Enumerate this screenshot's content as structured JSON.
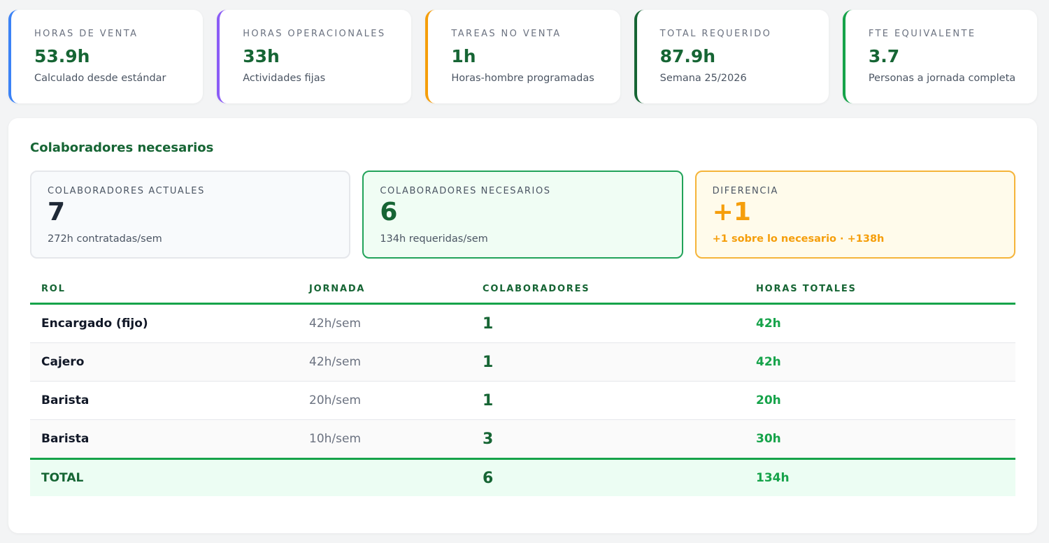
{
  "kpis": [
    {
      "label": "HORAS DE VENTA",
      "value": "53.9h",
      "sub": "Calculado desde estándar",
      "accent": "#3b82f6"
    },
    {
      "label": "HORAS OPERACIONALES",
      "value": "33h",
      "sub": "Actividades fijas",
      "accent": "#8b5cf6"
    },
    {
      "label": "TAREAS NO VENTA",
      "value": "1h",
      "sub": "Horas-hombre programadas",
      "accent": "#f59e0b"
    },
    {
      "label": "TOTAL REQUERIDO",
      "value": "87.9h",
      "sub": "Semana 25/2026",
      "accent": "#166534"
    },
    {
      "label": "FTE EQUIVALENTE",
      "value": "3.7",
      "sub": "Personas a jornada completa",
      "accent": "#16a34a"
    }
  ],
  "panel": {
    "title": "Colaboradores necesarios",
    "summary": {
      "actual": {
        "label": "COLABORADORES ACTUALES",
        "value": "7",
        "sub": "272h contratadas/sem"
      },
      "needed": {
        "label": "COLABORADORES NECESARIOS",
        "value": "6",
        "sub": "134h requeridas/sem"
      },
      "diff": {
        "label": "DIFERENCIA",
        "value": "+1",
        "sub": "+1 sobre lo necesario · +138h"
      }
    },
    "table": {
      "headers": {
        "rol": "ROL",
        "jornada": "JORNADA",
        "colaboradores": "COLABORADORES",
        "horas": "HORAS TOTALES"
      },
      "rows": [
        {
          "rol": "Encargado (fijo)",
          "jornada": "42h/sem",
          "colaboradores": "1",
          "horas": "42h"
        },
        {
          "rol": "Cajero",
          "jornada": "42h/sem",
          "colaboradores": "1",
          "horas": "42h"
        },
        {
          "rol": "Barista",
          "jornada": "20h/sem",
          "colaboradores": "1",
          "horas": "20h"
        },
        {
          "rol": "Barista",
          "jornada": "10h/sem",
          "colaboradores": "3",
          "horas": "30h"
        }
      ],
      "total": {
        "label": "TOTAL",
        "colaboradores": "6",
        "horas": "134h"
      }
    }
  },
  "colors": {
    "brand_green": "#166534",
    "accent_green": "#16a34a",
    "warning": "#f59e0b"
  }
}
